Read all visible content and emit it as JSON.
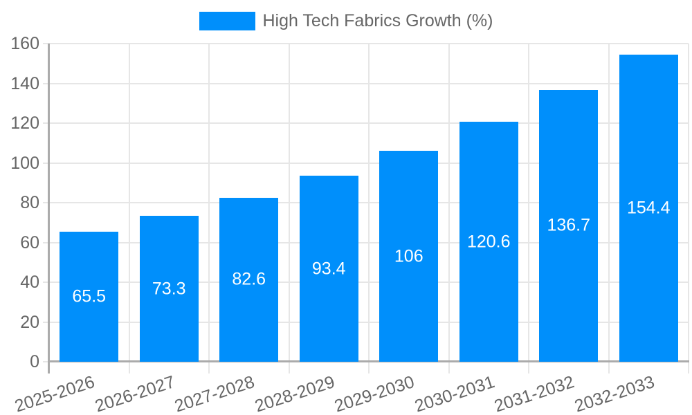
{
  "legend": {
    "label": "High Tech Fabrics Growth (%)"
  },
  "chart_data": {
    "type": "bar",
    "title": "High Tech Fabrics Growth (%)",
    "categories": [
      "2025-2026",
      "2026-2027",
      "2027-2028",
      "2028-2029",
      "2029-2030",
      "2030-2031",
      "2031-2032",
      "2032-2033"
    ],
    "series": [
      {
        "name": "High Tech Fabrics Growth (%)",
        "values": [
          65.5,
          73.3,
          82.6,
          93.4,
          106,
          120.6,
          136.7,
          154.4
        ]
      }
    ],
    "data_labels": [
      "65.5",
      "73.3",
      "82.6",
      "93.4",
      "106",
      "120.6",
      "136.7",
      "154.4"
    ],
    "xlabel": "",
    "ylabel": "",
    "ylim": [
      0,
      160
    ],
    "y_ticks": [
      0,
      20,
      40,
      60,
      80,
      100,
      120,
      140,
      160
    ],
    "grid": true,
    "legend_position": "top-center",
    "colors": {
      "bar": "#008FFB",
      "axis_label": "#666666",
      "legend_text": "#666666",
      "grid_line": "#e6e6e6",
      "axis_line": "#ababab",
      "value_label": "#ffffff",
      "background": "#ffffff"
    }
  }
}
